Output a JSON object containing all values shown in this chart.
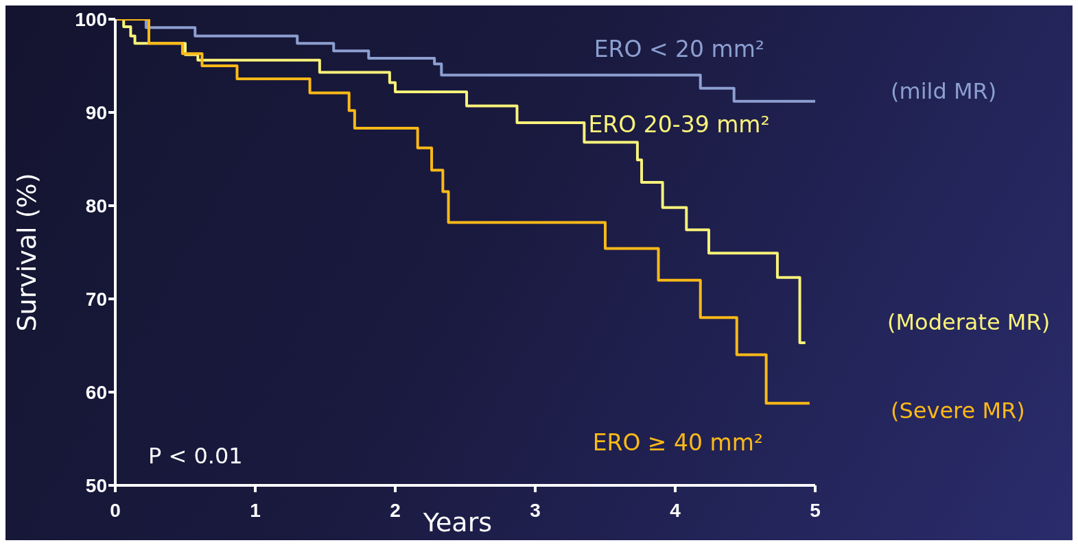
{
  "chart_data": {
    "type": "step",
    "xlabel": "Years",
    "ylabel": "Survival (%)",
    "xlim": [
      0,
      5
    ],
    "xticks": [
      0,
      1,
      2,
      3,
      4,
      5
    ],
    "ylim": [
      50,
      100
    ],
    "yticks": [
      50,
      60,
      70,
      80,
      90,
      100
    ],
    "grid": false,
    "legend": false,
    "marker": "none",
    "line_style": "solid",
    "series": [
      {
        "name": "ERO < 20 mm²",
        "color": "#8c9fd0",
        "x": [
          0,
          0.22,
          0.57,
          1.3,
          1.56,
          1.81,
          2.28,
          2.33,
          4.18,
          4.42,
          5.0
        ],
        "values": [
          100,
          99.1,
          98.2,
          97.4,
          96.6,
          95.8,
          95.2,
          94,
          92.6,
          91.2,
          91.2
        ]
      },
      {
        "name": "ERO 20-39 mm²",
        "color": "#f8f27a",
        "x": [
          0,
          0.06,
          0.11,
          0.14,
          0.5,
          0.59,
          1.46,
          1.96,
          2.0,
          2.51,
          2.87,
          3.35,
          3.73,
          3.76,
          3.91,
          4.08,
          4.24,
          4.73,
          4.89,
          4.93
        ],
        "values": [
          100,
          99.2,
          98.2,
          97.4,
          96.2,
          95.6,
          94.3,
          93.2,
          92.2,
          90.7,
          88.9,
          86.8,
          84.9,
          82.5,
          79.8,
          77.4,
          74.9,
          72.3,
          65.3,
          65.3
        ]
      },
      {
        "name": "ERO ≥ 40 mm²",
        "color": "#fbb917",
        "x": [
          0,
          0.24,
          0.48,
          0.62,
          0.87,
          1.39,
          1.67,
          1.71,
          2.16,
          2.26,
          2.34,
          2.38,
          3.5,
          3.88,
          4.18,
          4.44,
          4.65,
          4.96
        ],
        "values": [
          100,
          97.4,
          96.3,
          95.0,
          93.6,
          92.1,
          90.2,
          88.3,
          86.2,
          83.8,
          81.5,
          78.2,
          75.4,
          72.0,
          68.0,
          64.0,
          58.8,
          58.8
        ]
      }
    ],
    "annotations": [
      "(mild MR)",
      "(Moderate MR)",
      "(Severe MR)",
      "P < 0.01"
    ]
  }
}
